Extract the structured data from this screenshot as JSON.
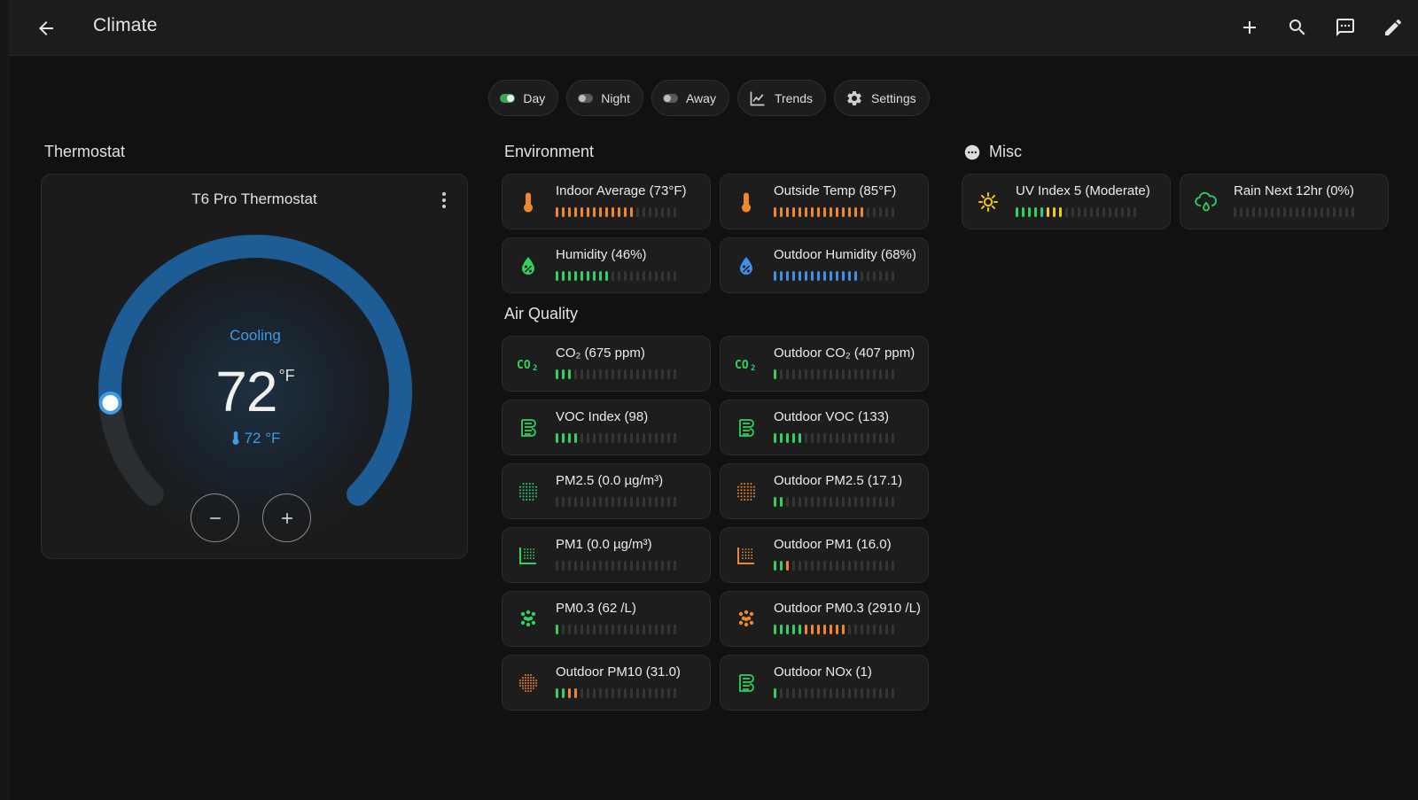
{
  "header": {
    "title": "Climate"
  },
  "chips": [
    {
      "label": "Day",
      "type": "toggle",
      "on": true
    },
    {
      "label": "Night",
      "type": "toggle",
      "on": false
    },
    {
      "label": "Away",
      "type": "toggle",
      "on": false
    },
    {
      "label": "Trends",
      "type": "icon",
      "icon": "trend-chart-icon"
    },
    {
      "label": "Settings",
      "type": "icon",
      "icon": "gear-icon"
    }
  ],
  "sections": {
    "thermostat": "Thermostat",
    "environment": "Environment",
    "air_quality": "Air Quality",
    "misc": "Misc"
  },
  "thermostat": {
    "name": "T6 Pro Thermostat",
    "mode": "Cooling",
    "target": "72",
    "unit": "°F",
    "current": "72 °F",
    "dial_level": 0.85
  },
  "colors": {
    "green": "#2fd162",
    "orange": "#f0872c",
    "blue": "#3f8fe8",
    "yellow": "#f2c81f",
    "track": "#353535",
    "dial_active": "#1d5c94",
    "dial_inactive": "#2a2e31"
  },
  "environment": [
    {
      "name": "Indoor Average (73°F)",
      "icon": "thermometer-icon",
      "icon_color": "#f0872c",
      "filled": 13,
      "color": "#f0872c"
    },
    {
      "name": "Outside Temp (85°F)",
      "icon": "thermometer-icon",
      "icon_color": "#f0872c",
      "filled": 15,
      "color": "#f0872c"
    },
    {
      "name": "Humidity (46%)",
      "icon": "water-percent-icon",
      "icon_color": "#2fd162",
      "filled": 9,
      "color": "#2fd162"
    },
    {
      "name": "Outdoor Humidity (68%)",
      "icon": "water-percent-icon",
      "icon_color": "#3f8fe8",
      "filled": 14,
      "color": "#3f8fe8"
    }
  ],
  "air_quality": [
    {
      "name": "CO₂ (675 ppm)",
      "icon": "co2-icon",
      "icon_color": "#2fd162",
      "filled": 3,
      "color": "#2fd162"
    },
    {
      "name": "Outdoor CO₂ (407 ppm)",
      "icon": "co2-icon",
      "icon_color": "#2fd162",
      "filled": 1,
      "color": "#2fd162"
    },
    {
      "name": "VOC Index (98)",
      "icon": "voc-icon",
      "icon_color": "#2fd162",
      "filled": 4,
      "color": "#2fd162"
    },
    {
      "name": "Outdoor VOC (133)",
      "icon": "voc-icon",
      "icon_color": "#2fd162",
      "filled": 5,
      "color": "#2fd162"
    },
    {
      "name": "PM2.5 (0.0 µg/m³)",
      "icon": "pm25-icon",
      "icon_color": "#2fd162",
      "filled": 0,
      "color": "#2fd162"
    },
    {
      "name": "Outdoor PM2.5 (17.1)",
      "icon": "pm25-icon",
      "icon_color": "#f0872c",
      "filled": 2,
      "color": "#2fd162"
    },
    {
      "name": "PM1 (0.0 µg/m³)",
      "icon": "pm1-icon",
      "icon_color": "#2fd162",
      "filled": 0,
      "color": "#2fd162"
    },
    {
      "name": "Outdoor PM1 (16.0)",
      "icon": "pm1-icon",
      "icon_color": "#f0872c",
      "filled": 3,
      "color": "#2fd162",
      "tail_color": "#f0872c",
      "tail_from": 2
    },
    {
      "name": "PM0.3 (62 /L)",
      "icon": "pm03-icon",
      "icon_color": "#2fd162",
      "filled": 1,
      "color": "#2fd162"
    },
    {
      "name": "Outdoor PM0.3 (2910 /L)",
      "icon": "pm03-icon",
      "icon_color": "#f0872c",
      "filled": 12,
      "color": "#2fd162",
      "tail_color": "#f0872c",
      "tail_from": 5
    },
    {
      "name": "Outdoor PM10 (31.0)",
      "icon": "pm10-icon",
      "icon_color": "#f0872c",
      "filled": 4,
      "color": "#2fd162",
      "tail_color": "#f0872c",
      "tail_from": 2
    },
    {
      "name": "Outdoor NOx (1)",
      "icon": "voc-icon",
      "icon_color": "#2fd162",
      "filled": 1,
      "color": "#2fd162"
    }
  ],
  "misc": [
    {
      "name": "UV Index 5 (Moderate)",
      "icon": "sun-icon",
      "icon_color": "#f2c81f",
      "filled": 8,
      "color": "#2fd162",
      "tail_color": "#f2c81f",
      "tail_from": 5
    },
    {
      "name": "Rain Next 12hr (0%)",
      "icon": "cloud-rain-icon",
      "icon_color": "#2fd162",
      "filled": 0,
      "color": "#2fd162"
    }
  ]
}
